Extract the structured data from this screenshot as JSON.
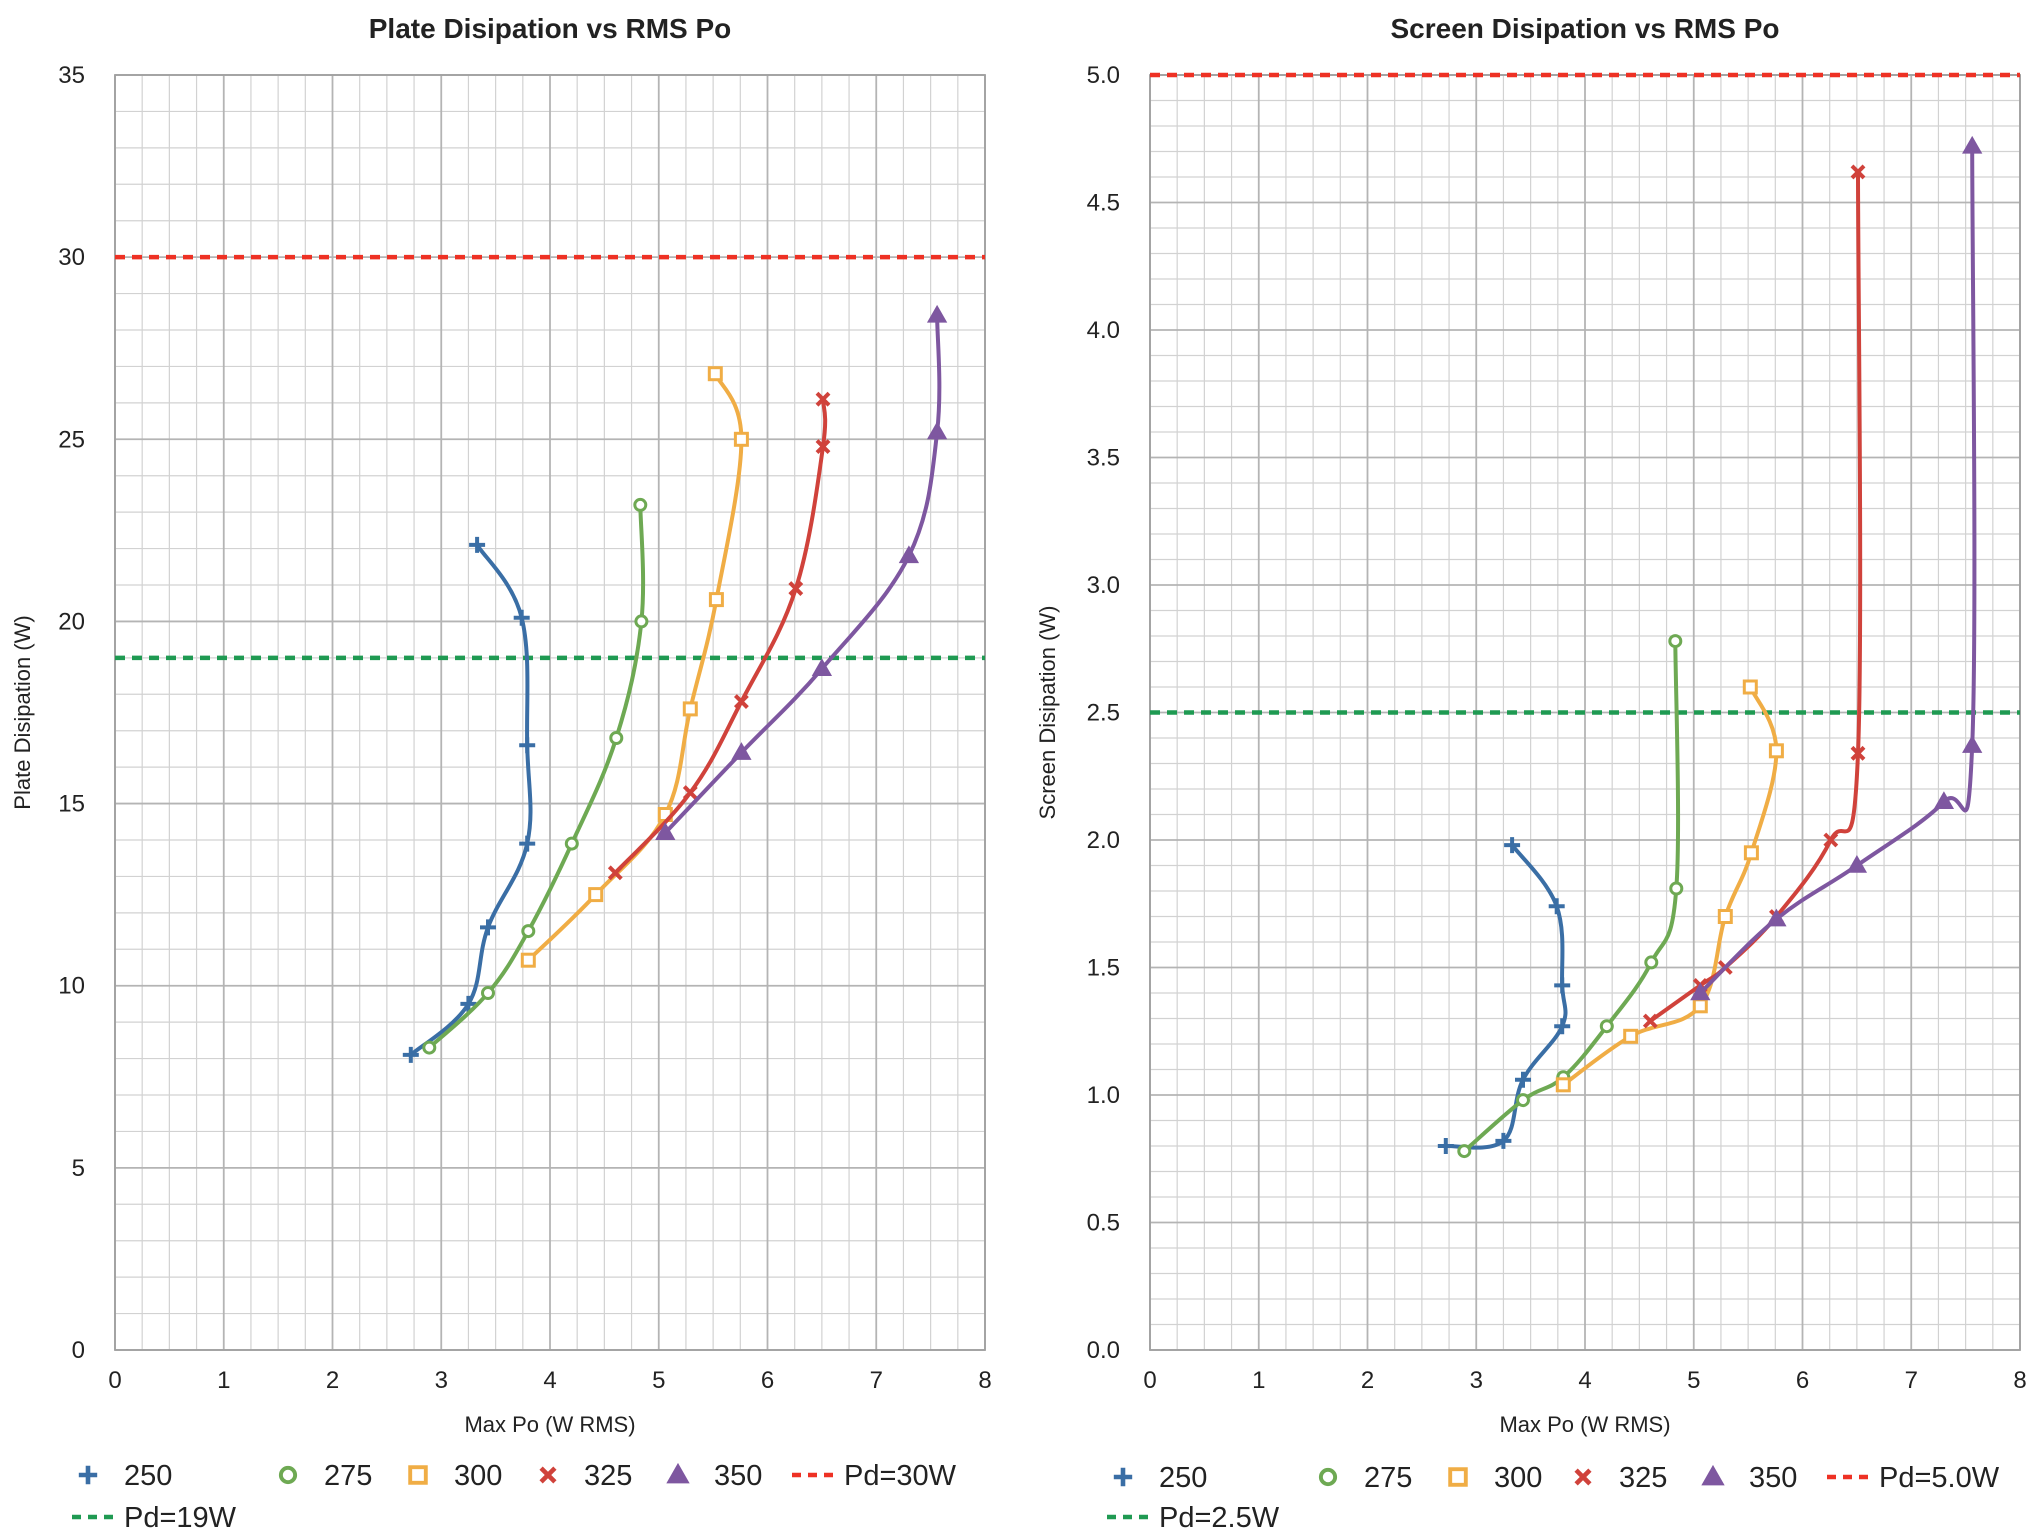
{
  "colors": {
    "250": "#3A6EA5",
    "275": "#6EA953",
    "300": "#F0AD45",
    "325": "#D0423B",
    "350": "#7E57A0",
    "red_line": "#EE3124",
    "green_line": "#1F9A52",
    "grid_major": "#b4b4b4",
    "grid_minor": "#d2d2d2"
  },
  "chart_data": [
    {
      "type": "line",
      "title": "Plate Disipation vs RMS Po",
      "xlabel": "Max Po (W RMS)",
      "ylabel": "Plate Disipation (W)",
      "xlim": [
        0,
        8
      ],
      "ylim": [
        0,
        35
      ],
      "xticks": [
        "0",
        "1",
        "2",
        "3",
        "4",
        "5",
        "6",
        "7",
        "8"
      ],
      "yticks": [
        "0",
        "5",
        "10",
        "15",
        "20",
        "25",
        "30",
        "35"
      ],
      "grid": true,
      "legend_position": "bottom",
      "series": [
        {
          "name": "250",
          "marker": "plus",
          "x": [
            2.72,
            3.25,
            3.43,
            3.79,
            3.79,
            3.74,
            3.33
          ],
          "y": [
            8.1,
            9.5,
            11.6,
            13.9,
            16.6,
            20.1,
            22.1
          ]
        },
        {
          "name": "275",
          "marker": "circle",
          "x": [
            2.89,
            3.43,
            3.8,
            4.2,
            4.61,
            4.84,
            4.83
          ],
          "y": [
            8.3,
            9.8,
            11.5,
            13.9,
            16.8,
            20.0,
            23.2
          ]
        },
        {
          "name": "300",
          "marker": "square",
          "x": [
            3.8,
            4.42,
            5.06,
            5.29,
            5.53,
            5.76,
            5.52
          ],
          "y": [
            10.7,
            12.5,
            14.7,
            17.6,
            20.6,
            25.0,
            26.8
          ]
        },
        {
          "name": "325",
          "marker": "x",
          "x": [
            4.6,
            5.29,
            5.76,
            6.26,
            6.51,
            6.51
          ],
          "y": [
            13.1,
            15.3,
            17.8,
            20.9,
            24.8,
            26.1
          ]
        },
        {
          "name": "350",
          "marker": "triangle",
          "x": [
            5.06,
            5.76,
            6.5,
            7.3,
            7.56,
            7.56
          ],
          "y": [
            14.2,
            16.4,
            18.7,
            21.8,
            25.2,
            28.4
          ]
        },
        {
          "name": "Pd=30W",
          "style": "dashed",
          "x": [
            0,
            8
          ],
          "y": [
            30,
            30
          ]
        },
        {
          "name": "Pd=19W",
          "style": "dashed",
          "x": [
            0,
            8
          ],
          "y": [
            19,
            19
          ]
        }
      ]
    },
    {
      "type": "line",
      "title": "Screen Disipation vs RMS Po",
      "xlabel": "Max Po (W RMS)",
      "ylabel": "Screen Disipation (W)",
      "xlim": [
        0,
        8
      ],
      "ylim": [
        0,
        5
      ],
      "xticks": [
        "0",
        "1",
        "2",
        "3",
        "4",
        "5",
        "6",
        "7",
        "8"
      ],
      "yticks": [
        "0.0",
        "0.5",
        "1.0",
        "1.5",
        "2.0",
        "2.5",
        "3.0",
        "3.5",
        "4.0",
        "4.5",
        "5.0"
      ],
      "grid": true,
      "legend_position": "bottom",
      "series": [
        {
          "name": "250",
          "marker": "plus",
          "x": [
            2.72,
            3.25,
            3.43,
            3.79,
            3.79,
            3.74,
            3.33
          ],
          "y": [
            0.8,
            0.82,
            1.06,
            1.27,
            1.43,
            1.74,
            1.98
          ]
        },
        {
          "name": "275",
          "marker": "circle",
          "x": [
            2.89,
            3.43,
            3.8,
            4.2,
            4.61,
            4.84,
            4.83
          ],
          "y": [
            0.78,
            0.98,
            1.07,
            1.27,
            1.52,
            1.81,
            2.78
          ]
        },
        {
          "name": "300",
          "marker": "square",
          "x": [
            3.8,
            4.42,
            5.06,
            5.29,
            5.53,
            5.76,
            5.52
          ],
          "y": [
            1.04,
            1.23,
            1.35,
            1.7,
            1.95,
            2.35,
            2.6
          ]
        },
        {
          "name": "325",
          "marker": "x",
          "x": [
            4.6,
            5.06,
            5.29,
            5.76,
            6.26,
            6.51,
            6.51
          ],
          "y": [
            1.29,
            1.43,
            1.5,
            1.7,
            2.0,
            2.34,
            4.62
          ]
        },
        {
          "name": "350",
          "marker": "triangle",
          "x": [
            5.06,
            5.76,
            6.5,
            7.3,
            7.56,
            7.56
          ],
          "y": [
            1.4,
            1.69,
            1.9,
            2.15,
            2.37,
            4.72
          ]
        },
        {
          "name": "Pd=5.0W",
          "style": "dashed",
          "x": [
            0,
            8
          ],
          "y": [
            5.0,
            5.0
          ]
        },
        {
          "name": "Pd=2.5W",
          "style": "dashed",
          "x": [
            0,
            8
          ],
          "y": [
            2.5,
            2.5
          ]
        }
      ]
    }
  ]
}
